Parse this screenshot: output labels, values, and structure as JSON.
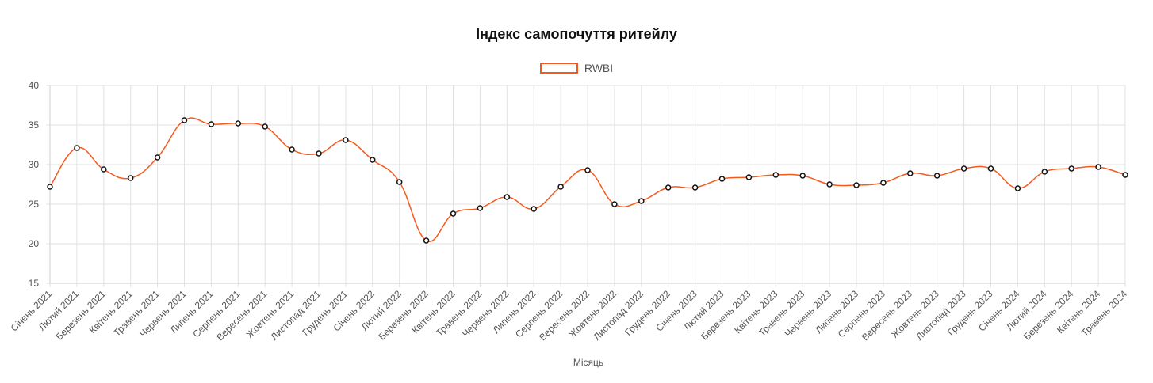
{
  "chart_data": {
    "type": "line",
    "title": "Індекс самопочуття ритейлу",
    "xlabel": "Місяць",
    "ylabel": "",
    "ylim": [
      15,
      40
    ],
    "yticks": [
      15,
      20,
      25,
      30,
      35,
      40
    ],
    "grid": true,
    "legend_position": "top",
    "color": "#f45a1e",
    "categories": [
      "Січень 2021",
      "Лютий 2021",
      "Березень 2021",
      "Квітень 2021",
      "Травень 2021",
      "Червень 2021",
      "Липень 2021",
      "Серпень 2021",
      "Вересень 2021",
      "Жовтень 2021",
      "Листопад 2021",
      "Грудень 2021",
      "Січень 2022",
      "Лютий 2022",
      "Березень 2022",
      "Квітень 2022",
      "Травень 2022",
      "Червень 2022",
      "Липень 2022",
      "Серпень 2022",
      "Вересень 2022",
      "Жовтень 2022",
      "Листопад 2022",
      "Грудень 2022",
      "Січень 2023",
      "Лютий 2023",
      "Березень 2023",
      "Квітень 2023",
      "Травень 2023",
      "Червень 2023",
      "Липень 2023",
      "Серпень 2023",
      "Вересень 2023",
      "Жовтень 2023",
      "Листопад 2023",
      "Грудень 2023",
      "Січень 2024",
      "Лютий 2024",
      "Березень 2024",
      "Квітень 2024",
      "Травень 2024"
    ],
    "series": [
      {
        "name": "RWBI",
        "values": [
          27.2,
          32.1,
          29.4,
          28.3,
          30.9,
          35.6,
          35.1,
          35.2,
          34.8,
          31.9,
          31.4,
          33.1,
          30.6,
          27.8,
          20.4,
          23.8,
          24.5,
          25.9,
          24.4,
          27.2,
          29.3,
          25.0,
          25.4,
          27.1,
          27.1,
          28.2,
          28.4,
          28.7,
          28.6,
          27.5,
          27.4,
          27.7,
          28.9,
          28.6,
          29.5,
          29.5,
          27.0,
          29.1,
          29.5,
          29.7,
          28.7
        ]
      }
    ]
  }
}
